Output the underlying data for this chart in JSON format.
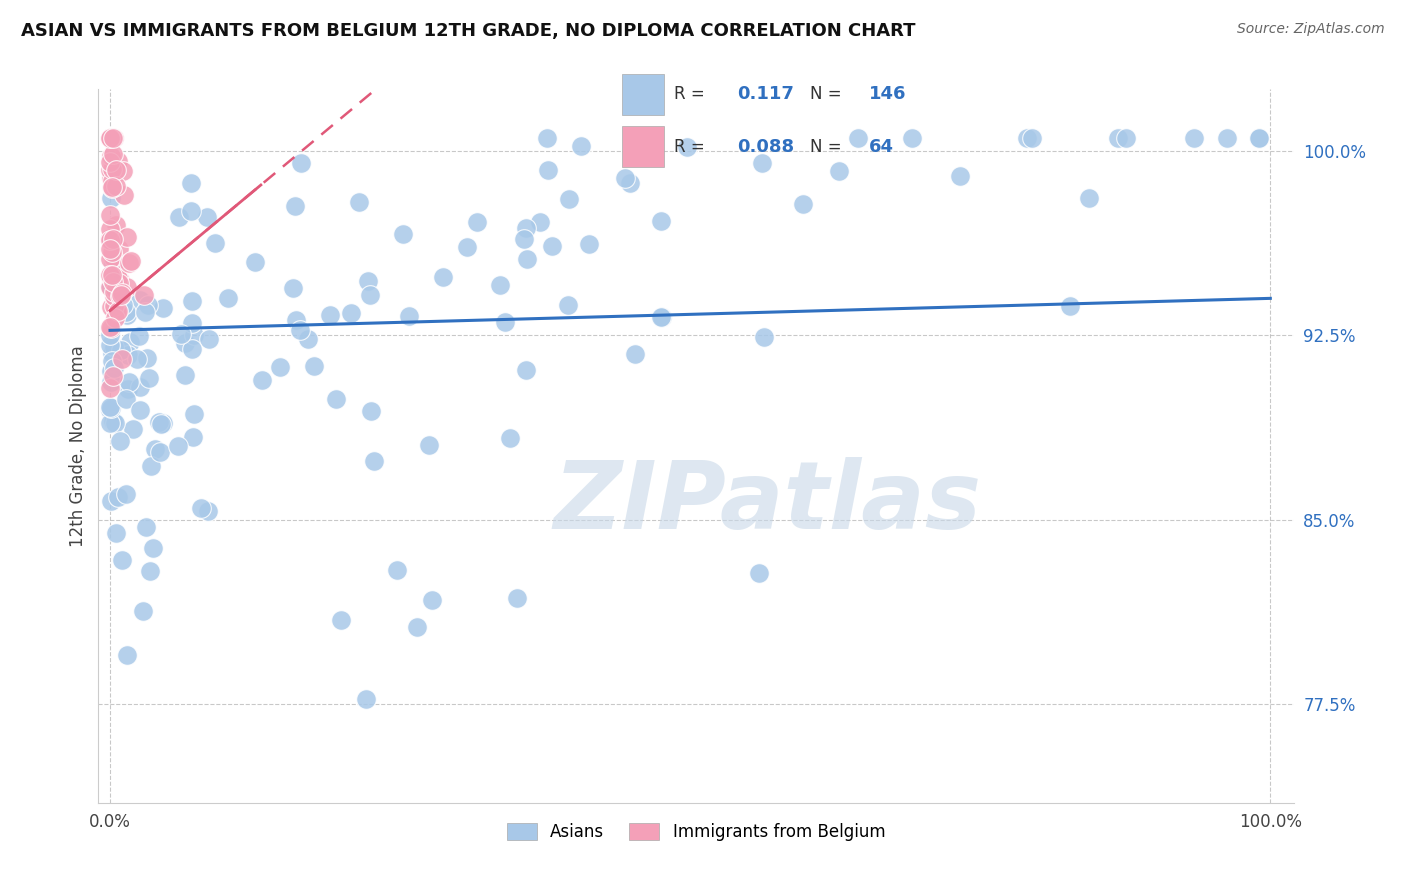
{
  "title": "ASIAN VS IMMIGRANTS FROM BELGIUM 12TH GRADE, NO DIPLOMA CORRELATION CHART",
  "source": "Source: ZipAtlas.com",
  "ylabel": "12th Grade, No Diploma",
  "R_asian": 0.117,
  "N_asian": 146,
  "R_belgium": 0.088,
  "N_belgium": 64,
  "asian_color": "#a8c8e8",
  "belgium_color": "#f4a0b8",
  "asian_line_color": "#3070c0",
  "belgium_line_color": "#e05878",
  "grid_color": "#bbbbbb",
  "background_color": "#ffffff",
  "watermark": "ZIPatlas",
  "watermark_color": "#c8d8e8",
  "xlim": [
    -0.01,
    1.02
  ],
  "ylim": [
    0.735,
    1.025
  ],
  "yticks": [
    0.775,
    0.85,
    0.925,
    1.0
  ],
  "ytick_labels": [
    "77.5%",
    "85.0%",
    "92.5%",
    "100.0%"
  ],
  "xtick_labels": [
    "0.0%",
    "100.0%"
  ]
}
